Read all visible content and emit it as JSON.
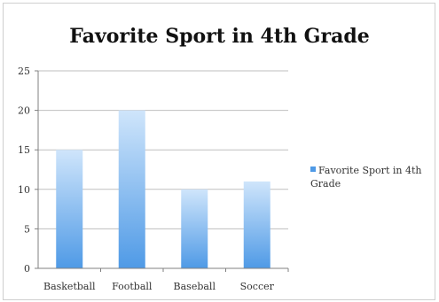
{
  "chart_data": {
    "type": "bar",
    "title": "Favorite Sport in 4th Grade",
    "categories": [
      "Basketball",
      "Football",
      "Baseball",
      "Soccer"
    ],
    "series": [
      {
        "name": "Favorite Sport in 4th Grade",
        "values": [
          15,
          20,
          10,
          11
        ]
      }
    ],
    "ylim": [
      0,
      25
    ],
    "yticks": [
      0,
      5,
      10,
      15,
      20,
      25
    ],
    "grid": true,
    "legend_position": "right",
    "colors": {
      "bar_top": "#cfe5fb",
      "bar_bottom": "#4f9ae6",
      "grid": "#bfbfbf",
      "axis": "#808080"
    }
  }
}
